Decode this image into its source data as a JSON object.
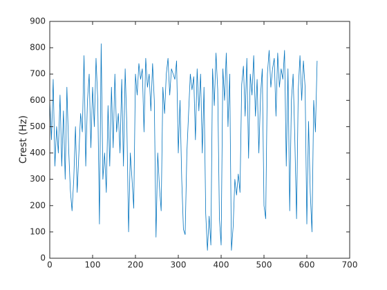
{
  "chart_data": {
    "type": "line",
    "ylabel": "Crest (Hz)",
    "x": [
      0,
      4,
      8,
      12,
      16,
      20,
      24,
      28,
      32,
      36,
      40,
      44,
      48,
      52,
      56,
      60,
      64,
      68,
      72,
      76,
      80,
      84,
      88,
      92,
      96,
      100,
      104,
      108,
      112,
      116,
      120,
      124,
      128,
      132,
      136,
      140,
      144,
      148,
      152,
      156,
      160,
      164,
      168,
      172,
      176,
      180,
      184,
      188,
      192,
      196,
      200,
      204,
      208,
      212,
      216,
      220,
      224,
      228,
      232,
      236,
      240,
      244,
      248,
      252,
      256,
      260,
      264,
      268,
      272,
      276,
      280,
      284,
      288,
      292,
      296,
      300,
      304,
      308,
      312,
      316,
      320,
      324,
      328,
      332,
      336,
      340,
      344,
      348,
      352,
      356,
      360,
      364,
      368,
      372,
      376,
      380,
      384,
      388,
      392,
      396,
      400,
      404,
      408,
      412,
      416,
      420,
      424,
      428,
      432,
      436,
      440,
      444,
      448,
      452,
      456,
      460,
      464,
      468,
      472,
      476,
      480,
      484,
      488,
      492,
      496,
      500,
      504,
      508,
      512,
      516,
      520,
      524,
      528,
      532,
      536,
      540,
      544,
      548,
      552,
      556,
      560,
      564,
      568,
      572,
      576,
      580,
      584,
      588,
      592,
      596,
      600,
      604,
      608,
      612,
      616,
      620,
      624
    ],
    "series": [
      {
        "color": "#0072bd",
        "values": [
          600,
          450,
          680,
          350,
          500,
          400,
          620,
          350,
          560,
          300,
          650,
          420,
          260,
          180,
          300,
          500,
          250,
          400,
          550,
          480,
          770,
          350,
          600,
          700,
          420,
          650,
          500,
          760,
          600,
          130,
          815,
          300,
          400,
          250,
          580,
          350,
          650,
          420,
          700,
          480,
          550,
          400,
          680,
          350,
          720,
          500,
          100,
          400,
          300,
          190,
          700,
          620,
          740,
          680,
          720,
          480,
          760,
          650,
          700,
          560,
          740,
          600,
          80,
          400,
          270,
          180,
          650,
          550,
          700,
          760,
          620,
          720,
          700,
          680,
          750,
          400,
          600,
          300,
          110,
          90,
          400,
          550,
          700,
          640,
          690,
          450,
          720,
          560,
          700,
          400,
          650,
          170,
          30,
          160,
          50,
          720,
          580,
          780,
          640,
          150,
          50,
          720,
          600,
          780,
          500,
          700,
          30,
          120,
          300,
          240,
          320,
          250,
          660,
          730,
          540,
          760,
          380,
          700,
          620,
          770,
          540,
          680,
          400,
          620,
          720,
          200,
          150,
          700,
          790,
          650,
          720,
          760,
          540,
          780,
          650,
          720,
          680,
          790,
          350,
          720,
          180,
          600,
          700,
          450,
          150,
          640,
          770,
          600,
          750,
          650,
          130,
          520,
          250,
          100,
          600,
          480,
          750
        ]
      }
    ],
    "xlim": [
      0,
      700
    ],
    "xticks": [
      0,
      100,
      200,
      300,
      400,
      500,
      600,
      700
    ],
    "ylim": [
      0,
      900
    ],
    "yticks": [
      0,
      100,
      200,
      300,
      400,
      500,
      600,
      700,
      800,
      900
    ]
  }
}
